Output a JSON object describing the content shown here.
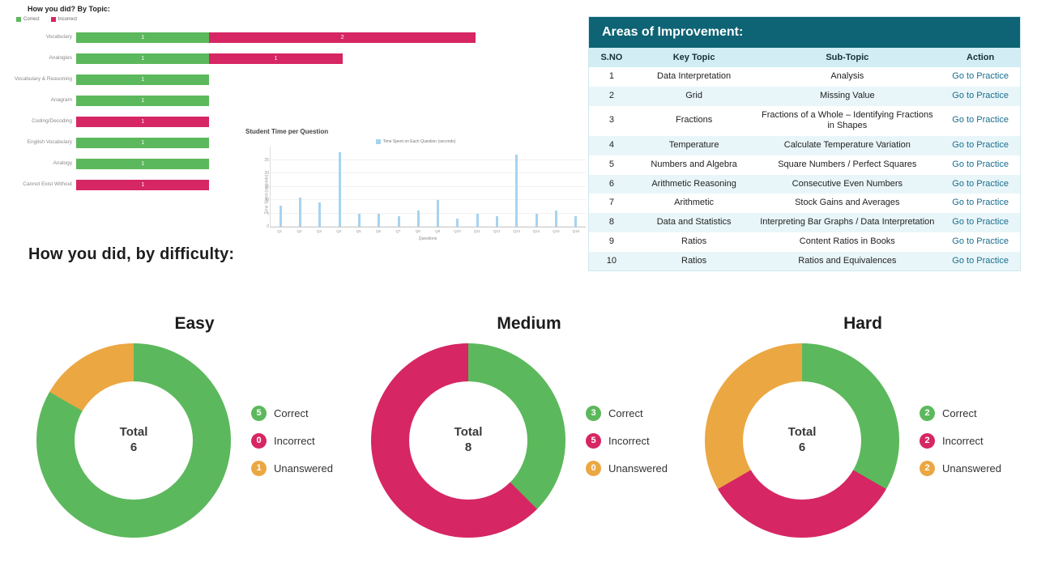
{
  "accent_colors": {
    "correct": "#5cb85c",
    "incorrect": "#d62663",
    "unanswered": "#eba742",
    "table_header": "#0e6374",
    "link": "#1a6e8e",
    "time_bar": "#a7d3ef"
  },
  "chart_data": [
    {
      "type": "bar",
      "orientation": "horizontal",
      "stacked": true,
      "title": "How you did? By Topic:",
      "categories": [
        "Vocabulary",
        "Analogies",
        "Vocabulary & Reasoning",
        "Anagram",
        "Coding/Decoding",
        "English Vocabulary",
        "Analogy",
        "Cannot Exist Without"
      ],
      "series": [
        {
          "name": "Correct",
          "color": "#5cb85c",
          "values": [
            1,
            1,
            1,
            1,
            0,
            1,
            1,
            0
          ]
        },
        {
          "name": "Incorrect",
          "color": "#d62663",
          "values": [
            2,
            1,
            0,
            0,
            1,
            0,
            0,
            1
          ]
        }
      ],
      "xlim": [
        0,
        3
      ],
      "legend_position": "top-left",
      "grid": false
    },
    {
      "type": "bar",
      "title": "Student Time per Question",
      "legend": [
        "Time Spent on Each Question (seconds)"
      ],
      "xlabel": "Questions",
      "ylabel": "Time Spent (seconds)",
      "categories": [
        "Q1",
        "Q2",
        "Q3",
        "Q4",
        "Q5",
        "Q6",
        "Q7",
        "Q8",
        "Q9",
        "Q10",
        "Q11",
        "Q12",
        "Q13",
        "Q14",
        "Q15",
        "Q16"
      ],
      "values": [
        8,
        11,
        9,
        28,
        5,
        5,
        4,
        6,
        10,
        3,
        5,
        4,
        27,
        5,
        6,
        4
      ],
      "ylim": [
        0,
        30
      ],
      "yticks": [
        0,
        5,
        10,
        15,
        20,
        25
      ],
      "color": "#a7d3ef",
      "legend_position": "top-center",
      "grid": true
    },
    {
      "type": "pie",
      "title": "Easy",
      "total_label": "Total",
      "total": 6,
      "slices": [
        {
          "label": "Correct",
          "value": 5,
          "color": "#5cb85c"
        },
        {
          "label": "Incorrect",
          "value": 0,
          "color": "#d62663"
        },
        {
          "label": "Unanswered",
          "value": 1,
          "color": "#eba742"
        }
      ]
    },
    {
      "type": "pie",
      "title": "Medium",
      "total_label": "Total",
      "total": 8,
      "slices": [
        {
          "label": "Correct",
          "value": 3,
          "color": "#5cb85c"
        },
        {
          "label": "Incorrect",
          "value": 5,
          "color": "#d62663"
        },
        {
          "label": "Unanswered",
          "value": 0,
          "color": "#eba742"
        }
      ]
    },
    {
      "type": "pie",
      "title": "Hard",
      "total_label": "Total",
      "total": 6,
      "slices": [
        {
          "label": "Correct",
          "value": 2,
          "color": "#5cb85c"
        },
        {
          "label": "Incorrect",
          "value": 2,
          "color": "#d62663"
        },
        {
          "label": "Unanswered",
          "value": 2,
          "color": "#eba742"
        }
      ]
    }
  ],
  "areas_table": {
    "title": "Areas of Improvement:",
    "columns": [
      "S.NO",
      "Key Topic",
      "Sub-Topic",
      "Action"
    ],
    "rows": [
      {
        "sno": "1",
        "key_topic": "Data Interpretation",
        "sub_topic": "Analysis",
        "action": "Go to Practice"
      },
      {
        "sno": "2",
        "key_topic": "Grid",
        "sub_topic": "Missing Value",
        "action": "Go to Practice"
      },
      {
        "sno": "3",
        "key_topic": "Fractions",
        "sub_topic": "Fractions of a Whole – Identifying Fractions in Shapes",
        "action": "Go to Practice"
      },
      {
        "sno": "4",
        "key_topic": "Temperature",
        "sub_topic": "Calculate Temperature Variation",
        "action": "Go to Practice"
      },
      {
        "sno": "5",
        "key_topic": "Numbers and Algebra",
        "sub_topic": "Square Numbers / Perfect Squares",
        "action": "Go to Practice"
      },
      {
        "sno": "6",
        "key_topic": "Arithmetic Reasoning",
        "sub_topic": "Consecutive Even Numbers",
        "action": "Go to Practice"
      },
      {
        "sno": "7",
        "key_topic": "Arithmetic",
        "sub_topic": "Stock Gains and Averages",
        "action": "Go to Practice"
      },
      {
        "sno": "8",
        "key_topic": "Data and Statistics",
        "sub_topic": "Interpreting Bar Graphs / Data Interpretation",
        "action": "Go to Practice"
      },
      {
        "sno": "9",
        "key_topic": "Ratios",
        "sub_topic": "Content Ratios in Books",
        "action": "Go to Practice"
      },
      {
        "sno": "10",
        "key_topic": "Ratios",
        "sub_topic": "Ratios and Equivalences",
        "action": "Go to Practice"
      }
    ]
  },
  "difficulty": {
    "title": "How you did, by difficulty:"
  }
}
